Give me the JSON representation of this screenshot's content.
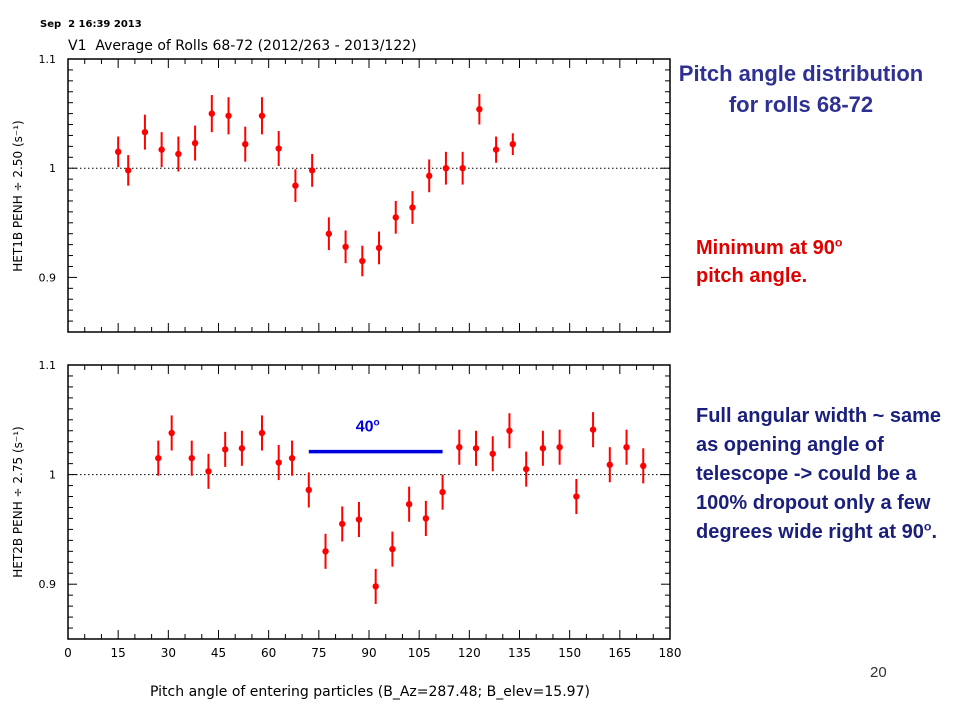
{
  "header": {
    "timestamp": "Sep  2 16:39 2013",
    "plot_title": "V1  Average of Rolls 68-72 (2012/263 - 2013/122)"
  },
  "slide": {
    "title": "Pitch angle distribution for rolls 68-72",
    "minimum_note": "Minimum at 90",
    "minimum_note_sup": "o",
    "minimum_note_tail": "pitch angle.",
    "width_note": "Full angular width ~ same as opening angle of telescope -> could be a 100% dropout only a few degrees wide right at 90",
    "width_note_sup": "o",
    "width_note_tail": ".",
    "page_number": "20"
  },
  "chart_data": [
    {
      "type": "scatter",
      "title": "",
      "xlabel": "Pitch angle of entering particles (B_Az=287.48; B_elev=15.97)",
      "ylabel": "HET1B PENH ÷ 2.50 (s⁻¹)",
      "xlim": [
        0,
        180
      ],
      "ylim": [
        0.85,
        1.1
      ],
      "x_ticks": [
        "0",
        "15",
        "30",
        "45",
        "60",
        "75",
        "90",
        "105",
        "120",
        "135",
        "150",
        "165",
        "180"
      ],
      "y_ticks": [
        "0.9",
        "1",
        "1.1"
      ],
      "reference_line": 1.0,
      "color": "#ff0000",
      "x": [
        15,
        18,
        23,
        28,
        33,
        38,
        43,
        48,
        53,
        58,
        63,
        68,
        73,
        78,
        83,
        88,
        93,
        98,
        103,
        108,
        113,
        118,
        123,
        128,
        133
      ],
      "y": [
        1.015,
        0.998,
        1.033,
        1.017,
        1.013,
        1.023,
        1.05,
        1.048,
        1.022,
        1.048,
        1.018,
        0.984,
        0.998,
        0.94,
        0.928,
        0.915,
        0.927,
        0.955,
        0.964,
        0.993,
        1.0,
        1.0,
        1.054,
        1.017,
        1.022
      ],
      "err": [
        0.014,
        0.014,
        0.016,
        0.016,
        0.016,
        0.016,
        0.017,
        0.017,
        0.016,
        0.017,
        0.016,
        0.015,
        0.015,
        0.015,
        0.015,
        0.014,
        0.015,
        0.015,
        0.015,
        0.015,
        0.015,
        0.015,
        0.014,
        0.012,
        0.01
      ]
    },
    {
      "type": "scatter",
      "title": "",
      "xlabel": "Pitch angle of entering particles (B_Az=287.48; B_elev=15.97)",
      "ylabel": "HET2B PENH ÷ 2.75 (s⁻¹)",
      "xlim": [
        0,
        180
      ],
      "ylim": [
        0.85,
        1.1
      ],
      "x_ticks": [
        "0",
        "15",
        "30",
        "45",
        "60",
        "75",
        "90",
        "105",
        "120",
        "135",
        "150",
        "165",
        "180"
      ],
      "y_ticks": [
        "0.9",
        "1",
        "1.1"
      ],
      "reference_line": 1.0,
      "color": "#ff0000",
      "annotation": {
        "text": "40",
        "sup": "o",
        "x_start": 72,
        "x_end": 112,
        "y": 1.021,
        "color": "#0000dd"
      },
      "x": [
        27,
        31,
        37,
        42,
        47,
        52,
        58,
        63,
        67,
        72,
        77,
        82,
        87,
        92,
        97,
        102,
        107,
        112,
        117,
        122,
        127,
        132,
        137,
        142,
        147,
        152,
        157,
        162,
        167,
        172
      ],
      "y": [
        1.015,
        1.038,
        1.015,
        1.003,
        1.023,
        1.024,
        1.038,
        1.011,
        1.015,
        0.986,
        0.93,
        0.955,
        0.959,
        0.898,
        0.932,
        0.973,
        0.96,
        0.984,
        1.025,
        1.024,
        1.019,
        1.04,
        1.005,
        1.024,
        1.025,
        0.98,
        1.041,
        1.009,
        1.025,
        1.008
      ]
    }
  ]
}
